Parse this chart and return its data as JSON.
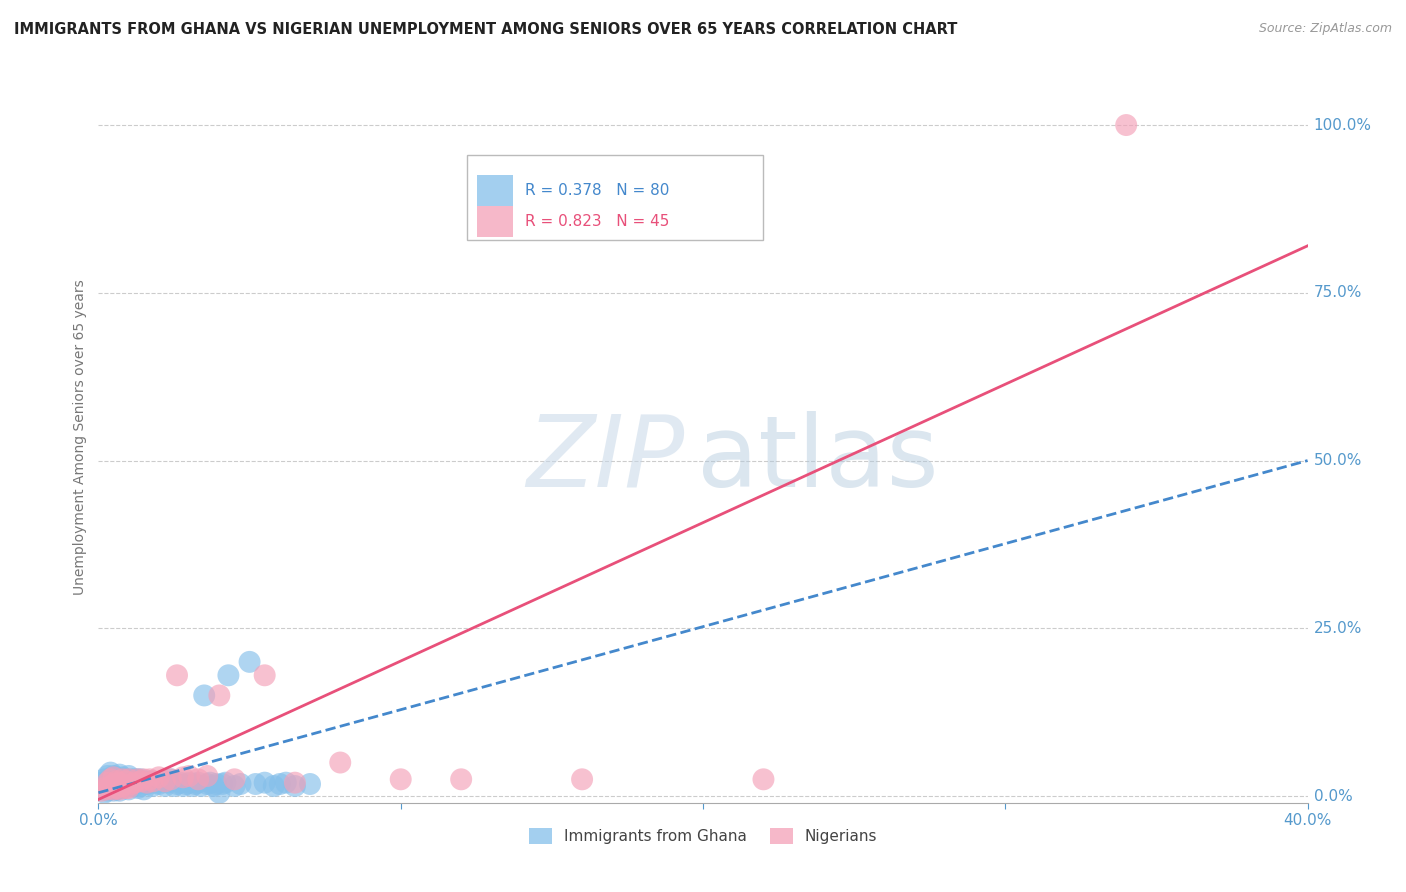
{
  "title": "IMMIGRANTS FROM GHANA VS NIGERIAN UNEMPLOYMENT AMONG SENIORS OVER 65 YEARS CORRELATION CHART",
  "source": "Source: ZipAtlas.com",
  "ylabel": "Unemployment Among Seniors over 65 years",
  "ytick_labels": [
    "0.0%",
    "25.0%",
    "50.0%",
    "75.0%",
    "100.0%"
  ],
  "ytick_vals": [
    0.0,
    0.25,
    0.5,
    0.75,
    1.0
  ],
  "xlim": [
    0,
    0.4
  ],
  "ylim": [
    -0.01,
    1.08
  ],
  "legend1_label": "R = 0.378   N = 80",
  "legend2_label": "R = 0.823   N = 45",
  "legend_bottom": [
    "Immigrants from Ghana",
    "Nigerians"
  ],
  "ghana_color": "#85BFEA",
  "nigeria_color": "#F4A0B8",
  "ghana_line_color": "#4488CC",
  "nigeria_line_color": "#E8507A",
  "watermark_zip": "ZIP",
  "watermark_atlas": "atlas",
  "ghana_points_x": [
    0.001,
    0.001,
    0.002,
    0.002,
    0.002,
    0.003,
    0.003,
    0.003,
    0.003,
    0.004,
    0.004,
    0.004,
    0.004,
    0.005,
    0.005,
    0.005,
    0.005,
    0.006,
    0.006,
    0.006,
    0.007,
    0.007,
    0.007,
    0.007,
    0.008,
    0.008,
    0.008,
    0.009,
    0.009,
    0.01,
    0.01,
    0.01,
    0.011,
    0.011,
    0.012,
    0.012,
    0.013,
    0.013,
    0.014,
    0.014,
    0.015,
    0.015,
    0.016,
    0.017,
    0.018,
    0.019,
    0.02,
    0.021,
    0.022,
    0.023,
    0.024,
    0.025,
    0.026,
    0.027,
    0.028,
    0.029,
    0.03,
    0.031,
    0.032,
    0.033,
    0.034,
    0.035,
    0.036,
    0.037,
    0.038,
    0.039,
    0.04,
    0.041,
    0.042,
    0.043,
    0.045,
    0.047,
    0.05,
    0.052,
    0.055,
    0.058,
    0.06,
    0.062,
    0.065,
    0.07
  ],
  "ghana_points_y": [
    0.01,
    0.02,
    0.005,
    0.015,
    0.025,
    0.008,
    0.012,
    0.02,
    0.03,
    0.01,
    0.018,
    0.025,
    0.035,
    0.008,
    0.015,
    0.022,
    0.03,
    0.01,
    0.02,
    0.028,
    0.008,
    0.015,
    0.022,
    0.032,
    0.012,
    0.02,
    0.028,
    0.015,
    0.025,
    0.01,
    0.02,
    0.03,
    0.015,
    0.025,
    0.015,
    0.025,
    0.012,
    0.025,
    0.015,
    0.025,
    0.01,
    0.02,
    0.018,
    0.022,
    0.015,
    0.02,
    0.018,
    0.022,
    0.015,
    0.02,
    0.025,
    0.015,
    0.018,
    0.02,
    0.015,
    0.018,
    0.02,
    0.015,
    0.018,
    0.02,
    0.015,
    0.15,
    0.018,
    0.02,
    0.015,
    0.018,
    0.005,
    0.018,
    0.02,
    0.18,
    0.015,
    0.018,
    0.2,
    0.018,
    0.02,
    0.015,
    0.018,
    0.02,
    0.015,
    0.018
  ],
  "nigeria_points_x": [
    0.001,
    0.002,
    0.003,
    0.003,
    0.004,
    0.004,
    0.005,
    0.005,
    0.005,
    0.006,
    0.006,
    0.007,
    0.007,
    0.008,
    0.008,
    0.009,
    0.009,
    0.01,
    0.01,
    0.011,
    0.012,
    0.013,
    0.014,
    0.015,
    0.016,
    0.017,
    0.018,
    0.02,
    0.022,
    0.024,
    0.026,
    0.028,
    0.03,
    0.033,
    0.036,
    0.04,
    0.045,
    0.055,
    0.065,
    0.08,
    0.1,
    0.12,
    0.16,
    0.22,
    0.34
  ],
  "nigeria_points_y": [
    0.008,
    0.012,
    0.01,
    0.02,
    0.015,
    0.025,
    0.01,
    0.018,
    0.028,
    0.012,
    0.022,
    0.01,
    0.02,
    0.015,
    0.025,
    0.012,
    0.022,
    0.012,
    0.025,
    0.018,
    0.02,
    0.025,
    0.022,
    0.025,
    0.02,
    0.025,
    0.022,
    0.028,
    0.022,
    0.025,
    0.18,
    0.028,
    0.03,
    0.025,
    0.03,
    0.15,
    0.025,
    0.18,
    0.02,
    0.05,
    0.025,
    0.025,
    0.025,
    0.025,
    1.0
  ],
  "ghana_line_x0": 0.0,
  "ghana_line_y0": 0.005,
  "ghana_line_x1": 0.4,
  "ghana_line_y1": 0.5,
  "nigeria_line_x0": 0.0,
  "nigeria_line_y0": -0.005,
  "nigeria_line_x1": 0.4,
  "nigeria_line_y1": 0.82
}
